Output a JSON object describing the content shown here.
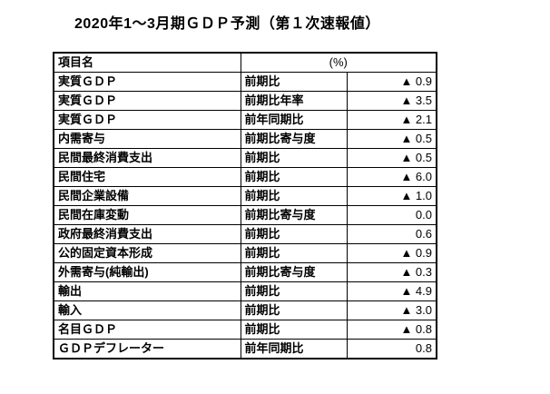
{
  "title": "2020年1～3月期ＧＤＰ予測（第１次速報値）",
  "colors": {
    "background": "#ffffff",
    "text": "#000000",
    "border": "#000000"
  },
  "negative_indicator": "▲",
  "table": {
    "header": {
      "item_label": "項目名",
      "unit_label": "(%)"
    },
    "rows": [
      {
        "item": "実質ＧＤＰ",
        "metric": "前期比",
        "value": "▲ 0.9"
      },
      {
        "item": "実質ＧＤＰ",
        "metric": "前期比年率",
        "value": "▲ 3.5"
      },
      {
        "item": "実質ＧＤＰ",
        "metric": "前年同期比",
        "value": "▲ 2.1"
      },
      {
        "item": "内需寄与",
        "metric": "前期比寄与度",
        "value": "▲ 0.5"
      },
      {
        "item": "民間最終消費支出",
        "metric": "前期比",
        "value": "▲ 0.5"
      },
      {
        "item": "民間住宅",
        "metric": "前期比",
        "value": "▲ 6.0"
      },
      {
        "item": "民間企業設備",
        "metric": "前期比",
        "value": "▲ 1.0"
      },
      {
        "item": "民間在庫変動",
        "metric": "前期比寄与度",
        "value": "0.0"
      },
      {
        "item": "政府最終消費支出",
        "metric": "前期比",
        "value": "0.6"
      },
      {
        "item": "公的固定資本形成",
        "metric": "前期比",
        "value": "▲ 0.9"
      },
      {
        "item": "外需寄与(純輸出)",
        "metric": "前期比寄与度",
        "value": "▲ 0.3"
      },
      {
        "item": "輸出",
        "metric": "前期比",
        "value": "▲ 4.9"
      },
      {
        "item": "輸入",
        "metric": "前期比",
        "value": "▲ 3.0"
      },
      {
        "item": "名目ＧＤＰ",
        "metric": "前期比",
        "value": "▲ 0.8"
      },
      {
        "item": "ＧＤＰデフレーター",
        "metric": "前年同期比",
        "value": "0.8"
      }
    ]
  }
}
